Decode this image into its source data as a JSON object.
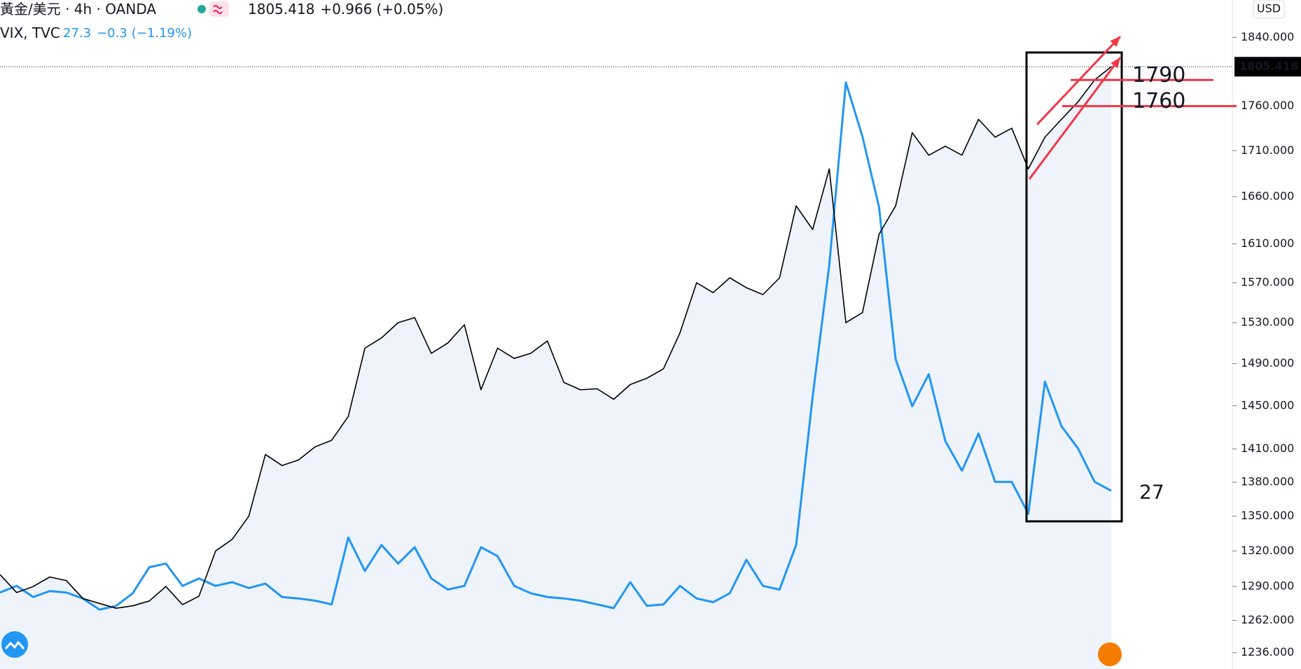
{
  "chart_data": {
    "type": "line",
    "log_scale": true,
    "currency": "USD",
    "ylim": [
      1223,
      1885
    ],
    "yticks": [
      {
        "value": 1236,
        "label": "1236.000"
      },
      {
        "value": 1262,
        "label": "1262.000"
      },
      {
        "value": 1290,
        "label": "1290.000"
      },
      {
        "value": 1320,
        "label": "1320.000"
      },
      {
        "value": 1350,
        "label": "1350.000"
      },
      {
        "value": 1380,
        "label": "1380.000"
      },
      {
        "value": 1410,
        "label": "1410.000"
      },
      {
        "value": 1450,
        "label": "1450.000"
      },
      {
        "value": 1490,
        "label": "1490.000"
      },
      {
        "value": 1530,
        "label": "1530.000"
      },
      {
        "value": 1570,
        "label": "1570.000"
      },
      {
        "value": 1610,
        "label": "1610.000"
      },
      {
        "value": 1660,
        "label": "1660.000"
      },
      {
        "value": 1710,
        "label": "1710.000"
      },
      {
        "value": 1760,
        "label": "1760.000"
      },
      {
        "value": 1840,
        "label": "1840.000"
      }
    ],
    "y2lim": [
      3.3,
      93.4
    ],
    "series": [
      {
        "name": "黃金/美元 · 4h · OANDA",
        "color": "#000000",
        "area_color": "#eef3fc",
        "change": "+0.966",
        "change_pct": "(+0.05%)",
        "values": [
          1300,
          1285,
          1290,
          1298,
          1295,
          1280,
          1276,
          1272,
          1274,
          1278,
          1290,
          1275,
          1282,
          1320,
          1330,
          1350,
          1405,
          1395,
          1400,
          1412,
          1418,
          1440,
          1505,
          1515,
          1530,
          1535,
          1500,
          1510,
          1528,
          1465,
          1505,
          1495,
          1500,
          1512,
          1472,
          1465,
          1466,
          1456,
          1470,
          1476,
          1485,
          1520,
          1570,
          1560,
          1575,
          1565,
          1558,
          1575,
          1650,
          1625,
          1690,
          1530,
          1540,
          1620,
          1650,
          1730,
          1705,
          1715,
          1705,
          1745,
          1725,
          1735,
          1690,
          1725,
          1745,
          1765,
          1790,
          1805.418
        ]
      },
      {
        "name": "VIX, TVC",
        "color": "#2196f3",
        "axis": "y2",
        "change": "−0.3",
        "change_pct": "(−1.19%)",
        "values": [
          13.6,
          14.5,
          13,
          13.8,
          13.6,
          12.8,
          11.3,
          11.8,
          13.5,
          17,
          17.5,
          14.5,
          15.5,
          14.5,
          15,
          14.2,
          14.8,
          13,
          12.8,
          12.5,
          12,
          21,
          16.5,
          20,
          17.5,
          19.7,
          15.5,
          14,
          14.5,
          19.7,
          18.5,
          14.5,
          13.5,
          13,
          12.8,
          12.5,
          12,
          11.5,
          15,
          11.8,
          12,
          14.5,
          12.8,
          12.3,
          13.5,
          18,
          14.5,
          14,
          20,
          40,
          57.7,
          82.3,
          75,
          65.5,
          45,
          38.7,
          43,
          34,
          30,
          35,
          28.5,
          28.5,
          24.2,
          42,
          36,
          33,
          28.5,
          27.3
        ]
      }
    ],
    "hlines": [
      1790,
      1760
    ],
    "vix_note": 27,
    "annotation_color": "#f23645"
  }
}
